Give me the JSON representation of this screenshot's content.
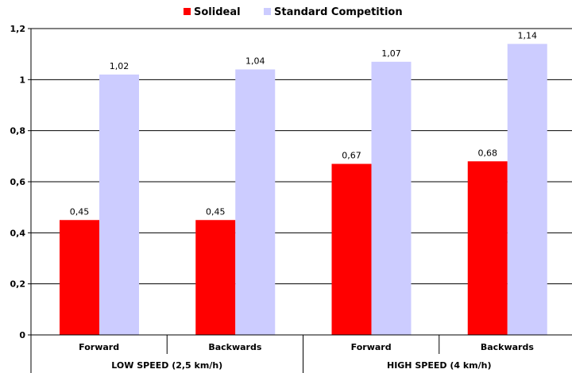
{
  "chart_data": {
    "type": "bar",
    "categories": [
      "Forward",
      "Backwards",
      "Forward",
      "Backwards"
    ],
    "groups": [
      {
        "label": "LOW SPEED (2,5 km/h)",
        "categories": [
          "Forward",
          "Backwards"
        ]
      },
      {
        "label": "HIGH SPEED (4 km/h)",
        "categories": [
          "Forward",
          "Backwards"
        ]
      }
    ],
    "series": [
      {
        "name": "Solideal",
        "color": "#ff0000",
        "values": [
          0.45,
          0.45,
          0.67,
          0.68
        ],
        "labels": [
          "0,45",
          "0,45",
          "0,67",
          "0,68"
        ]
      },
      {
        "name": "Standard Competition",
        "color": "#ccccff",
        "values": [
          1.02,
          1.04,
          1.07,
          1.14
        ],
        "labels": [
          "1,02",
          "1,04",
          "1,07",
          "1,14"
        ]
      }
    ],
    "yticks": [
      0,
      0.2,
      0.4,
      0.6,
      0.8,
      1,
      1.2
    ],
    "ytick_labels": [
      "0",
      "0,2",
      "0,4",
      "0,6",
      "0,8",
      "1",
      "1,2"
    ],
    "ylim": [
      0,
      1.2
    ],
    "title": "",
    "xlabel": "",
    "ylabel": "",
    "grid": true,
    "legend_position": "top-center"
  }
}
